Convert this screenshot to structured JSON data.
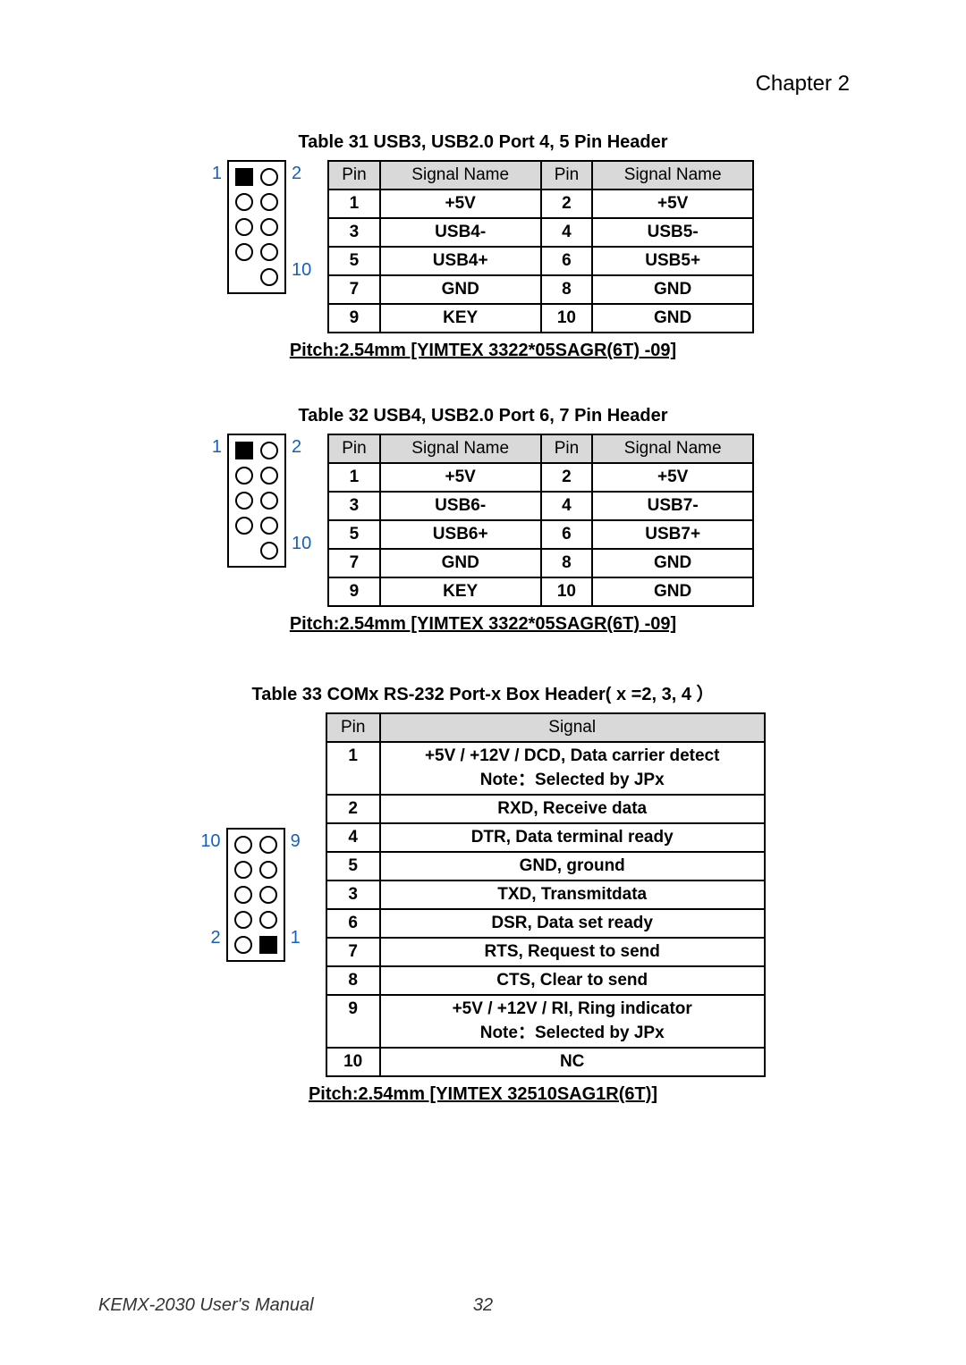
{
  "chapter": "Chapter  2",
  "footer_left": "KEMX-2030 User's Manual",
  "footer_page": "32",
  "section31": {
    "title": "Table 31 USB3, USB2.0 Port 4, 5 Pin Header",
    "labels": {
      "tl": "1",
      "tr": "2",
      "br": "10"
    },
    "headers": [
      "Pin",
      "Signal Name",
      "Pin",
      "Signal Name"
    ],
    "rows": [
      [
        "1",
        "+5V",
        "2",
        "+5V"
      ],
      [
        "3",
        "USB4-",
        "4",
        "USB5-"
      ],
      [
        "5",
        "USB4+",
        "6",
        "USB5+"
      ],
      [
        "7",
        "GND",
        "8",
        "GND"
      ],
      [
        "9",
        "KEY",
        "10",
        "GND"
      ]
    ],
    "pitch": "Pitch:2.54mm [YIMTEX 3322*05SAGR(6T) -09]"
  },
  "section32": {
    "title": "Table 32 USB4, USB2.0 Port 6, 7 Pin Header",
    "labels": {
      "tl": "1",
      "tr": "2",
      "br": "10"
    },
    "headers": [
      "Pin",
      "Signal Name",
      "Pin",
      "Signal Name"
    ],
    "rows": [
      [
        "1",
        "+5V",
        "2",
        "+5V"
      ],
      [
        "3",
        "USB6-",
        "4",
        "USB7-"
      ],
      [
        "5",
        "USB6+",
        "6",
        "USB7+"
      ],
      [
        "7",
        "GND",
        "8",
        "GND"
      ],
      [
        "9",
        "KEY",
        "10",
        "GND"
      ]
    ],
    "pitch": "Pitch:2.54mm [YIMTEX 3322*05SAGR(6T) -09]"
  },
  "section33": {
    "title": "Table 33 COMx    RS-232 Port-x Box Header( x =2, 3, 4  ）",
    "labels": {
      "tl": "10",
      "tr": "9",
      "bl": "2",
      "br": "1"
    },
    "headers": [
      "Pin",
      "Signal"
    ],
    "rows": [
      [
        "1",
        "+5V / +12V / DCD, Data carrier detect\nNote：Selected by JPx"
      ],
      [
        "2",
        "RXD, Receive data"
      ],
      [
        "4",
        "DTR, Data terminal ready"
      ],
      [
        "5",
        "GND, ground"
      ],
      [
        "3",
        "TXD, Transmitdata"
      ],
      [
        "6",
        "DSR, Data set ready"
      ],
      [
        "7",
        "RTS, Request to send"
      ],
      [
        "8",
        "CTS, Clear to send"
      ],
      [
        "9",
        "+5V / +12V / RI, Ring indicator\nNote：Selected by JPx"
      ],
      [
        "10",
        "NC"
      ]
    ],
    "pitch": "Pitch:2.54mm [YIMTEX 32510SAG1R(6T)]"
  }
}
